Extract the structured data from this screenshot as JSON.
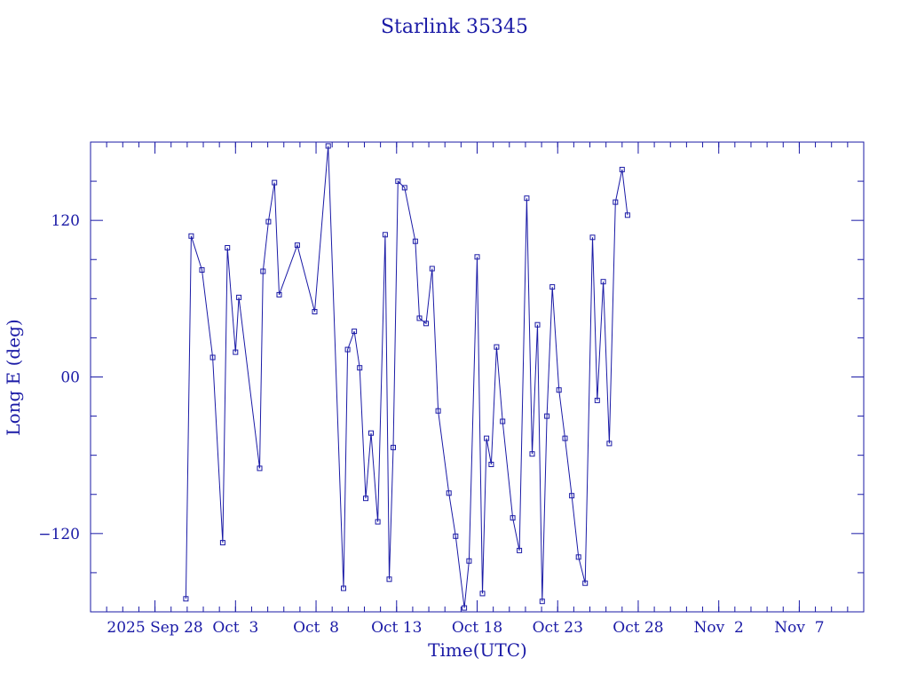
{
  "chart_data": {
    "type": "line",
    "title": "Starlink 35345",
    "xlabel": "Time(UTC)",
    "ylabel": "Long E (deg)",
    "color": "#1a1aa6",
    "marker": "square",
    "ylim": [
      -180,
      180
    ],
    "xlim": [
      "2025-09-24",
      "2025-11-11"
    ],
    "yticks": [
      {
        "value": 120,
        "label": "120"
      },
      {
        "value": 0,
        "label": "00"
      },
      {
        "value": -120,
        "label": "−120"
      }
    ],
    "xticks": [
      {
        "date": "2025-09-28",
        "label": "2025 Sep 28"
      },
      {
        "date": "2025-10-03",
        "label": "Oct  3"
      },
      {
        "date": "2025-10-08",
        "label": "Oct  8"
      },
      {
        "date": "2025-10-13",
        "label": "Oct 13"
      },
      {
        "date": "2025-10-18",
        "label": "Oct 18"
      },
      {
        "date": "2025-10-23",
        "label": "Oct 23"
      },
      {
        "date": "2025-10-28",
        "label": "Oct 28"
      },
      {
        "date": "2025-11-02",
        "label": "Nov  2"
      },
      {
        "date": "2025-11-07",
        "label": "Nov  7"
      }
    ],
    "grid": false,
    "legend": "none",
    "series": [
      {
        "points": [
          [
            "2025-09-29 22:00",
            -170
          ],
          [
            "2025-09-30 06:00",
            108
          ],
          [
            "2025-09-30 22:00",
            82
          ],
          [
            "2025-10-01 14:00",
            15
          ],
          [
            "2025-10-02 05:00",
            -127
          ],
          [
            "2025-10-02 12:00",
            99
          ],
          [
            "2025-10-03 00:00",
            19
          ],
          [
            "2025-10-03 05:00",
            61
          ],
          [
            "2025-10-04 12:00",
            -70
          ],
          [
            "2025-10-04 17:00",
            81
          ],
          [
            "2025-10-05 01:00",
            119
          ],
          [
            "2025-10-05 10:00",
            149
          ],
          [
            "2025-10-05 17:00",
            63
          ],
          [
            "2025-10-06 20:00",
            101
          ],
          [
            "2025-10-07 22:00",
            50
          ],
          [
            "2025-10-08 18:00",
            177
          ],
          [
            "2025-10-09 17:00",
            -162
          ],
          [
            "2025-10-09 23:00",
            21
          ],
          [
            "2025-10-10 09:00",
            35
          ],
          [
            "2025-10-10 17:00",
            7
          ],
          [
            "2025-10-11 02:00",
            -93
          ],
          [
            "2025-10-11 10:00",
            -43
          ],
          [
            "2025-10-11 20:00",
            -111
          ],
          [
            "2025-10-12 07:00",
            109
          ],
          [
            "2025-10-12 13:00",
            -155
          ],
          [
            "2025-10-12 19:00",
            -54
          ],
          [
            "2025-10-13 02:00",
            150
          ],
          [
            "2025-10-13 12:00",
            145
          ],
          [
            "2025-10-14 04:00",
            104
          ],
          [
            "2025-10-14 10:00",
            45
          ],
          [
            "2025-10-14 20:00",
            41
          ],
          [
            "2025-10-15 05:00",
            83
          ],
          [
            "2025-10-15 14:00",
            -26
          ],
          [
            "2025-10-16 06:00",
            -89
          ],
          [
            "2025-10-16 16:00",
            -122
          ],
          [
            "2025-10-17 05:00",
            -177
          ],
          [
            "2025-10-17 12:00",
            -141
          ],
          [
            "2025-10-18 00:00",
            92
          ],
          [
            "2025-10-18 08:00",
            -166
          ],
          [
            "2025-10-18 14:00",
            -47
          ],
          [
            "2025-10-18 21:00",
            -67
          ],
          [
            "2025-10-19 05:00",
            23
          ],
          [
            "2025-10-19 14:00",
            -34
          ],
          [
            "2025-10-20 05:00",
            -108
          ],
          [
            "2025-10-20 15:00",
            -133
          ],
          [
            "2025-10-21 02:00",
            137
          ],
          [
            "2025-10-21 10:00",
            -59
          ],
          [
            "2025-10-21 18:00",
            40
          ],
          [
            "2025-10-22 01:00",
            -172
          ],
          [
            "2025-10-22 08:00",
            -30
          ],
          [
            "2025-10-22 16:00",
            69
          ],
          [
            "2025-10-23 02:00",
            -10
          ],
          [
            "2025-10-23 11:00",
            -47
          ],
          [
            "2025-10-23 21:00",
            -91
          ],
          [
            "2025-10-24 07:00",
            -138
          ],
          [
            "2025-10-24 17:00",
            -158
          ],
          [
            "2025-10-25 04:00",
            107
          ],
          [
            "2025-10-25 11:00",
            -18
          ],
          [
            "2025-10-25 20:00",
            73
          ],
          [
            "2025-10-26 05:00",
            -51
          ],
          [
            "2025-10-26 14:00",
            134
          ],
          [
            "2025-10-27 00:00",
            159
          ],
          [
            "2025-10-27 08:00",
            124
          ]
        ]
      }
    ]
  }
}
